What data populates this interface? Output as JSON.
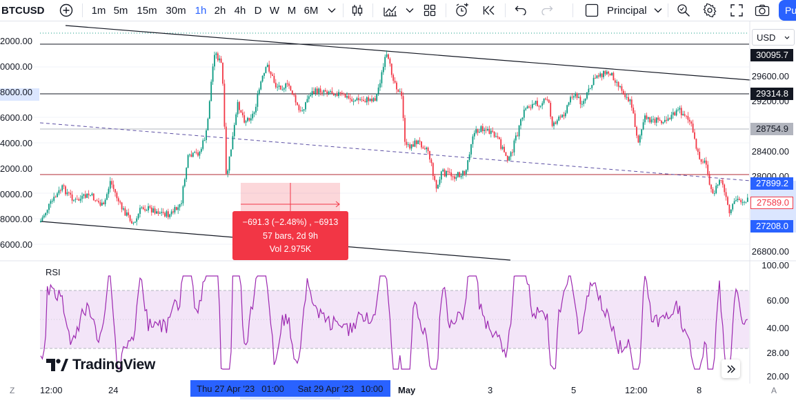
{
  "toolbar": {
    "symbol": "BTCUSD",
    "timeframes": [
      "1m",
      "5m",
      "15m",
      "30m",
      "1h",
      "2h",
      "4h",
      "D",
      "W",
      "M",
      "6M"
    ],
    "active_timeframe": "1h",
    "layout_name": "Principal",
    "publish_label": "Pu",
    "icons": [
      "add-symbol-icon",
      "chevron-down-icon",
      "candles-icon",
      "indicators-icon",
      "chevron-down-icon",
      "templates-icon",
      "alert-icon",
      "replay-icon",
      "undo-icon",
      "redo-icon",
      "layout-square-icon",
      "search-icon",
      "gear-icon",
      "fullscreen-icon",
      "camera-icon"
    ]
  },
  "left_scale": [
    "2000.00",
    "0000.00",
    "8000.00",
    "6000.00",
    "4000.00",
    "2000.00",
    "0000.00",
    "8000.00",
    "6000.00"
  ],
  "right_scale": {
    "currency": "USD",
    "ticks": [
      "29600.00",
      "29200.00",
      "28400.00",
      "28000.00",
      "27200.00",
      "26800.00"
    ],
    "tags": [
      {
        "label": "30095.7",
        "style": "dark"
      },
      {
        "label": "29314.8",
        "style": "dark"
      },
      {
        "label": "28754.9",
        "style": "gray"
      },
      {
        "label": "27899.2",
        "style": "blue"
      },
      {
        "label": "27589.0",
        "style": "red-outline"
      },
      {
        "label": "27208.0",
        "style": "blue"
      }
    ]
  },
  "rsi": {
    "label": "RSI",
    "ticks": [
      "100.00",
      "60.00",
      "40.00",
      "28.00",
      "20.00"
    ]
  },
  "measure_tooltip": {
    "line1": "−691.3 (−2.48%) , −6913",
    "line2": "57 bars, 2d 9h",
    "line3": "Vol 2.975K"
  },
  "time_axis": {
    "labels": [
      "12:00",
      "24",
      "May",
      "3",
      "5",
      "12:00",
      "8"
    ],
    "range_start": "Thu 27 Apr '23",
    "range_start_time": "01:00",
    "range_end": "Sat 29 Apr '23",
    "range_end_time": "10:00",
    "left_icon": "Z",
    "right_icon": "A"
  },
  "brand": "TradingView",
  "colors": {
    "accent": "#2962ff",
    "up": "#089981",
    "down": "#f23645",
    "rsi_line": "#9c27b0",
    "rsi_band": "#f3e5f8"
  }
}
